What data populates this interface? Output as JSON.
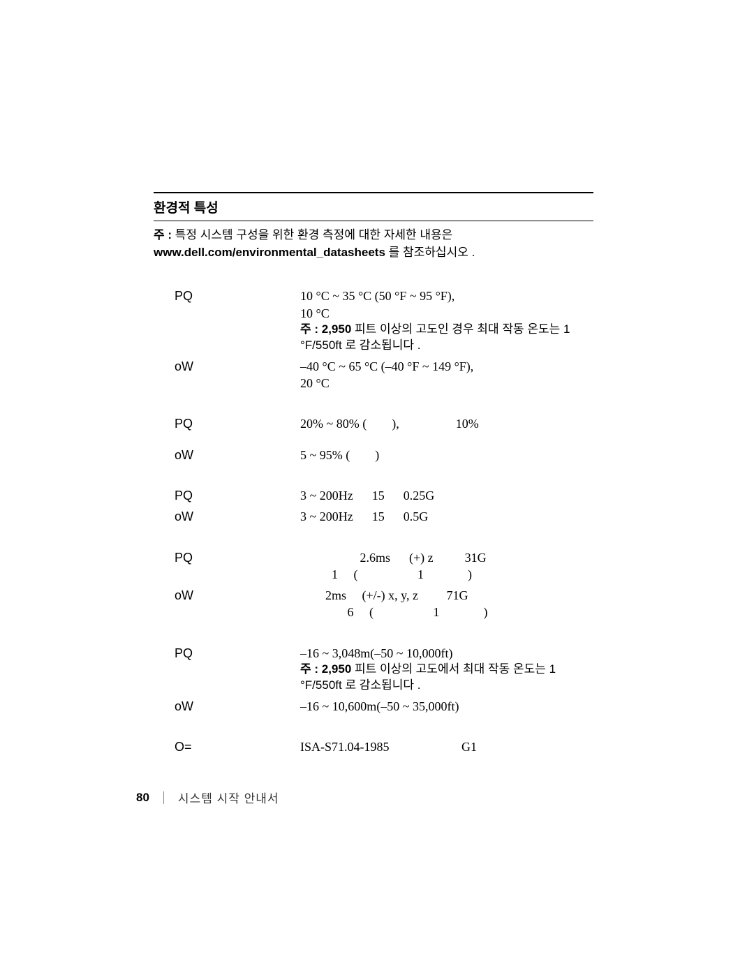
{
  "section_title": "환경적 특성",
  "intro_prefix": "주 : ",
  "intro_line1": "특정 시스템 구성을 위한 환경 측정에 대한 자세한 내용은",
  "intro_bold": "www.dell.com/environmental_datasheets",
  "intro_suffix": " 를 참조하십시오 .",
  "rows": {
    "r1_label": "PQ",
    "r1_val_l1": "10 °C ~ 35 °C (50 °F ~ 95 °F),",
    "r1_val_l2": "10 °C",
    "r1_note_b": "주 : 2,950",
    "r1_note_rest": " 피트 이상의 고도인 경우 최대 작동 온도는 1 °F/550ft 로 감소됩니다 .",
    "r2_label": "oW",
    "r2_val_l1": "–40 °C ~ 65 °C (–40 °F ~ 149 °F),",
    "r2_val_l2": "20 °C",
    "r3_label": "PQ",
    "r3_val": "20% ~ 80% (        ),                  10%",
    "r4_label": "oW",
    "r4_val": "5 ~ 95% (        )",
    "r5_label": "PQ",
    "r5_val": "3 ~ 200Hz      15      0.25G",
    "r6_label": "oW",
    "r6_val": "3 ~ 200Hz      15      0.5G",
    "r7_label": "PQ",
    "r7_val_l1": "                   2.6ms      (+) z          31G",
    "r7_val_l2": "          1     (                   1              )",
    "r8_label": "oW",
    "r8_val_l1": "        2ms     (+/-) x, y, z         71G",
    "r8_val_l2": "               6     (                   1              )",
    "r9_label": "PQ",
    "r9_val": "–16 ~ 3,048m(–50 ~ 10,000ft)",
    "r9_note_b": "주 : 2,950",
    "r9_note_rest": " 피트 이상의 고도에서 최대 작동 온도는 1 °F/550ft 로 감소됩니다 .",
    "r10_label": "oW",
    "r10_val": "–16 ~ 10,600m(–50 ~ 35,000ft)",
    "r11_label": "O=",
    "r11_val": "ISA-S71.04-1985                       G1"
  },
  "footer": {
    "page_num": "80",
    "text": "시스템 시작 안내서"
  }
}
